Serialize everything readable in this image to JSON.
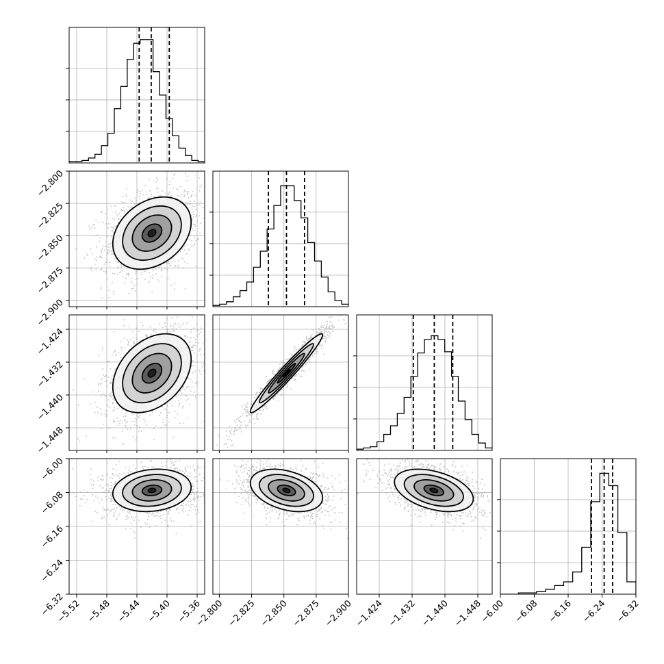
{
  "chart_data": {
    "type": "corner",
    "grid": true,
    "quantile_lines": "dashed",
    "parameters": [
      {
        "range": [
          -5.53,
          -5.35
        ],
        "ticks": [
          "-5.52",
          "-5.48",
          "-5.44",
          "-5.40",
          "-5.36"
        ],
        "tick_values": [
          -5.52,
          -5.48,
          -5.44,
          -5.4,
          -5.36
        ],
        "quantiles": [
          -5.437,
          -5.421,
          -5.397
        ],
        "mean": -5.42,
        "sd": 0.026
      },
      {
        "range": [
          -2.905,
          -2.8
        ],
        "ticks": [
          "-2.800",
          "-2.825",
          "-2.850",
          "-2.875",
          "-2.900"
        ],
        "tick_values": [
          -2.8,
          -2.825,
          -2.85,
          -2.875,
          -2.9
        ],
        "quantiles": [
          -2.862,
          -2.848,
          -2.834
        ],
        "mean": -2.848,
        "sd": 0.014
      },
      {
        "range": [
          -1.4535,
          -1.4205
        ],
        "ticks": [
          "-1.424",
          "-1.432",
          "-1.440",
          "-1.448"
        ],
        "tick_values": [
          -1.424,
          -1.432,
          -1.44,
          -1.448
        ],
        "quantiles": [
          -1.4397,
          -1.4346,
          -1.4301
        ],
        "mean": -1.4347,
        "sd": 0.0048
      },
      {
        "range": [
          -6.32,
          -6.0
        ],
        "ticks": [
          "-6.00",
          "-6.08",
          "-6.16",
          "-6.24",
          "-6.32"
        ],
        "tick_values": [
          -6.0,
          -6.08,
          -6.16,
          -6.24,
          -6.32
        ],
        "quantiles": [
          -6.105,
          -6.075,
          -6.055
        ],
        "mean": -6.075,
        "sd": 0.025
      }
    ],
    "bottom_axis_ticks": [
      [
        "-5.52",
        "-5.48",
        "-5.44",
        "-5.40",
        "-5.36"
      ],
      [
        "-2.900",
        "-2.875",
        "-2.850",
        "-2.825",
        "-2.800"
      ],
      [
        "-1.448",
        "-1.440",
        "-1.432",
        "-1.424"
      ],
      [
        "-6.32",
        "-6.24",
        "-6.16",
        "-6.08",
        "-6.00"
      ]
    ],
    "histograms": [
      {
        "counts": [
          0.01,
          0.01,
          0.02,
          0.04,
          0.07,
          0.14,
          0.24,
          0.44,
          0.62,
          0.84,
          0.97,
          1.0,
          1.0,
          0.74,
          0.55,
          0.36,
          0.22,
          0.12,
          0.06,
          0.02,
          0.01
        ]
      },
      {
        "counts": [
          0.01,
          0.02,
          0.04,
          0.08,
          0.13,
          0.2,
          0.32,
          0.45,
          0.63,
          0.82,
          0.98,
          0.98,
          0.86,
          0.72,
          0.52,
          0.37,
          0.24,
          0.12,
          0.05,
          0.02
        ]
      },
      {
        "counts": [
          0.01,
          0.02,
          0.03,
          0.07,
          0.13,
          0.2,
          0.3,
          0.43,
          0.6,
          0.79,
          0.9,
          0.93,
          0.9,
          0.8,
          0.6,
          0.4,
          0.25,
          0.13,
          0.06,
          0.02
        ]
      },
      {
        "counts": [
          0.0,
          0.0,
          0.01,
          0.01,
          0.02,
          0.04,
          0.07,
          0.1,
          0.18,
          0.38,
          0.75,
          0.98,
          0.88,
          0.5,
          0.1
        ]
      }
    ],
    "correlations": [
      [
        1,
        0.3,
        0.35,
        0.15
      ],
      [
        0.3,
        1,
        0.97,
        -0.35
      ],
      [
        0.35,
        0.97,
        1,
        -0.4
      ],
      [
        0.15,
        -0.35,
        -0.4,
        1
      ]
    ]
  }
}
